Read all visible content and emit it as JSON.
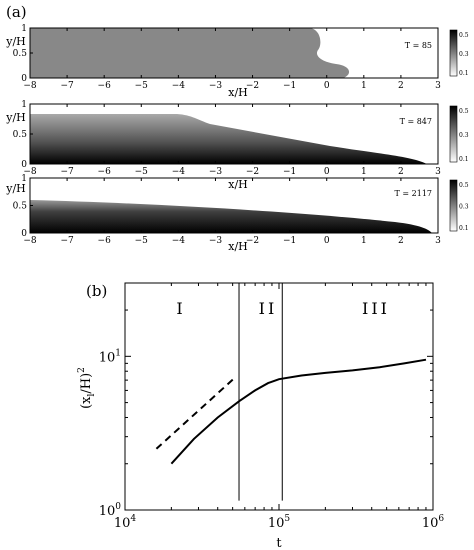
{
  "panel_a": {
    "label": "(a)",
    "colorbar_ticks": [
      "0.5",
      "0.3",
      "0.1"
    ],
    "subplots": [
      {
        "time_label": "T = 85",
        "ylabel": "y/H",
        "xlabel": "x/H",
        "xlim": [
          -8,
          3
        ],
        "ylim": [
          0,
          1
        ],
        "xticks": [
          "−8",
          "−7",
          "−6",
          "−5",
          "−4",
          "−3",
          "−2",
          "−1",
          "0",
          "1",
          "2",
          "3"
        ],
        "yticks": [
          "0",
          "0.5",
          "1"
        ]
      },
      {
        "time_label": "T = 847",
        "ylabel": "y/H",
        "xlabel": "x/H",
        "xlim": [
          -8,
          3
        ],
        "ylim": [
          0,
          1
        ],
        "xticks": [
          "−8",
          "−7",
          "−6",
          "−5",
          "−4",
          "−3",
          "−2",
          "−1",
          "0",
          "1",
          "2",
          "3"
        ],
        "yticks": [
          "0",
          "0.5",
          "1"
        ]
      },
      {
        "time_label": "T = 2117",
        "ylabel": "y/H",
        "xlabel": "x/H",
        "xlim": [
          -8,
          3
        ],
        "ylim": [
          0,
          1
        ],
        "xticks": [
          "−8",
          "−7",
          "−6",
          "−5",
          "−4",
          "−3",
          "−2",
          "−1",
          "0",
          "1",
          "2",
          "3"
        ],
        "yticks": [
          "0",
          "0.5",
          "1"
        ]
      }
    ]
  },
  "panel_b": {
    "label": "(b)",
    "region_labels": [
      "I",
      "II",
      "III"
    ]
  },
  "chart_data": {
    "type": "line",
    "title": "",
    "xlabel": "t",
    "ylabel": "(x_l/H)^2",
    "x_scale": "log",
    "y_scale": "log",
    "xlim": [
      10000,
      1000000
    ],
    "ylim": [
      1,
      30
    ],
    "x_tick_labels": [
      "10^4",
      "10^5",
      "10^6"
    ],
    "y_tick_labels": [
      "10^0",
      "10^1"
    ],
    "series": [
      {
        "x": [
          20000,
          28000,
          40000,
          55000,
          70000,
          85000,
          100000,
          140000,
          200000,
          300000,
          450000,
          650000,
          900000
        ],
        "y": [
          2.0,
          2.9,
          4.0,
          5.1,
          6.0,
          6.7,
          7.1,
          7.5,
          7.8,
          8.1,
          8.5,
          9.0,
          9.5
        ],
        "style": "solid"
      },
      {
        "x": [
          16000,
          52000
        ],
        "y": [
          2.5,
          7.3
        ],
        "style": "dashed"
      }
    ],
    "vertical_lines_x": [
      55000,
      105000
    ],
    "grid": false,
    "legend": "none"
  }
}
